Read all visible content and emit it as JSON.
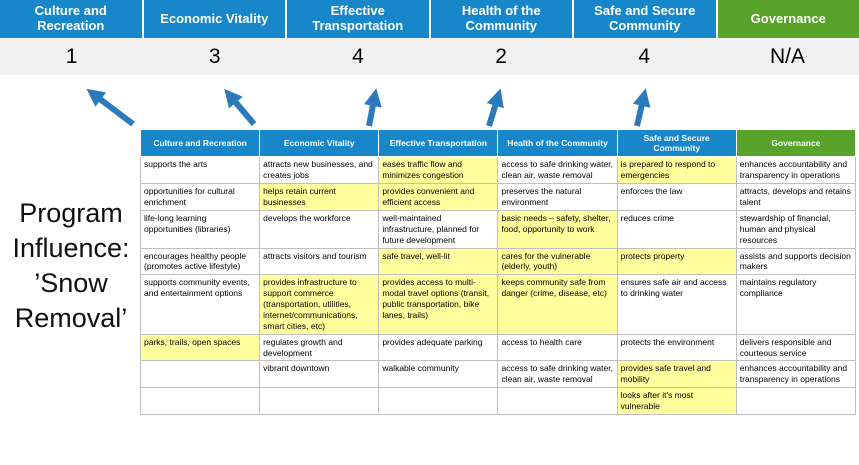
{
  "colors": {
    "blue": "#1787c9",
    "green": "#58a32a",
    "highlight": "#ffff9d",
    "score_bg": "#f1f1f1",
    "arrow": "#2b7abc"
  },
  "program_title": {
    "lines": [
      "Program",
      "Influence:",
      "’Snow",
      "Removal’"
    ]
  },
  "pillars": [
    {
      "label": "Culture and Recreation",
      "score": "1",
      "type": "blue"
    },
    {
      "label": "Economic Vitality",
      "score": "3",
      "type": "blue"
    },
    {
      "label": "Effective Transportation",
      "score": "4",
      "type": "blue"
    },
    {
      "label": "Health of the Community",
      "score": "2",
      "type": "blue"
    },
    {
      "label": "Safe and Secure Community",
      "score": "4",
      "type": "blue"
    },
    {
      "label": "Governance",
      "score": "N/A",
      "type": "green"
    }
  ],
  "matrix": {
    "headers": [
      {
        "label": "Culture and Recreation",
        "type": "blue"
      },
      {
        "label": "Economic Vitality",
        "type": "blue"
      },
      {
        "label": "Effective Transportation",
        "type": "blue"
      },
      {
        "label": "Health of the Community",
        "type": "blue"
      },
      {
        "label": "Safe and Secure Community",
        "type": "blue"
      },
      {
        "label": "Governance",
        "type": "green"
      }
    ],
    "rows": [
      [
        {
          "text": "supports the arts",
          "highlight": false
        },
        {
          "text": "attracts new businesses, and creates jobs",
          "highlight": false
        },
        {
          "text": "eases traffic flow and minimizes congestion",
          "highlight": true
        },
        {
          "text": "access to safe drinking water, clean air, waste removal",
          "highlight": false
        },
        {
          "text": "is prepared to respond to emergencies",
          "highlight": true
        },
        {
          "text": "enhances accountability and transparency in operations",
          "highlight": false
        }
      ],
      [
        {
          "text": "opportunities for cultural enrichment",
          "highlight": false
        },
        {
          "text": "helps retain current businesses",
          "highlight": true
        },
        {
          "text": "provides convenient and efficient access",
          "highlight": true
        },
        {
          "text": "preserves the natural environment",
          "highlight": false
        },
        {
          "text": "enforces the law",
          "highlight": false
        },
        {
          "text": "attracts, develops and retains talent",
          "highlight": false
        }
      ],
      [
        {
          "text": "life-long learning opportunities (libraries)",
          "highlight": false
        },
        {
          "text": "develops the workforce",
          "highlight": false
        },
        {
          "text": "well-maintained infrastructure, planned for future development",
          "highlight": false
        },
        {
          "text": "basic needs – safety, shelter, food, opportunity to work",
          "highlight": true
        },
        {
          "text": "reduces crime",
          "highlight": false
        },
        {
          "text": "stewardship of financial, human and physical resources",
          "highlight": false
        }
      ],
      [
        {
          "text": "encourages healthy people (promotes active lifestyle)",
          "highlight": false
        },
        {
          "text": "attracts visitors and tourism",
          "highlight": false
        },
        {
          "text": "safe travel, well-lit",
          "highlight": true
        },
        {
          "text": "cares for the vulnerable (elderly, youth)",
          "highlight": true
        },
        {
          "text": "protects property",
          "highlight": true
        },
        {
          "text": "assists and supports decision makers",
          "highlight": false
        }
      ],
      [
        {
          "text": "supports community events, and entertainment options",
          "highlight": false
        },
        {
          "text": "provides infrastructure to support commerce (transportation, utilities, internet/communications, smart cities, etc)",
          "highlight": true
        },
        {
          "text": "provides access to multi-modal travel options (transit, public transportation, bike lanes, trails)",
          "highlight": true
        },
        {
          "text": "keeps community safe from danger (crime, disease, etc)",
          "highlight": true
        },
        {
          "text": "ensures safe air and access to drinking water",
          "highlight": false
        },
        {
          "text": "maintains regulatory compliance",
          "highlight": false
        }
      ],
      [
        {
          "text": "parks, trails, open spaces",
          "highlight": true
        },
        {
          "text": "regulates growth and development",
          "highlight": false
        },
        {
          "text": "provides adequate parking",
          "highlight": false
        },
        {
          "text": "access to health care",
          "highlight": false
        },
        {
          "text": "protects the environment",
          "highlight": false
        },
        {
          "text": "delivers responsible and courteous service",
          "highlight": false
        }
      ],
      [
        {
          "text": "",
          "highlight": false
        },
        {
          "text": "vibrant downtown",
          "highlight": false
        },
        {
          "text": "walkable community",
          "highlight": false
        },
        {
          "text": "access to safe drinking water, clean air, waste removal",
          "highlight": false
        },
        {
          "text": "provides safe travel and mobility",
          "highlight": true
        },
        {
          "text": "enhances accountability and transparency in operations",
          "highlight": false
        }
      ],
      [
        {
          "text": "",
          "highlight": false
        },
        {
          "text": "",
          "highlight": false
        },
        {
          "text": "",
          "highlight": false
        },
        {
          "text": "",
          "highlight": false
        },
        {
          "text": "looks after it's most vulnerable",
          "highlight": true
        },
        {
          "text": "",
          "highlight": false
        }
      ]
    ]
  }
}
